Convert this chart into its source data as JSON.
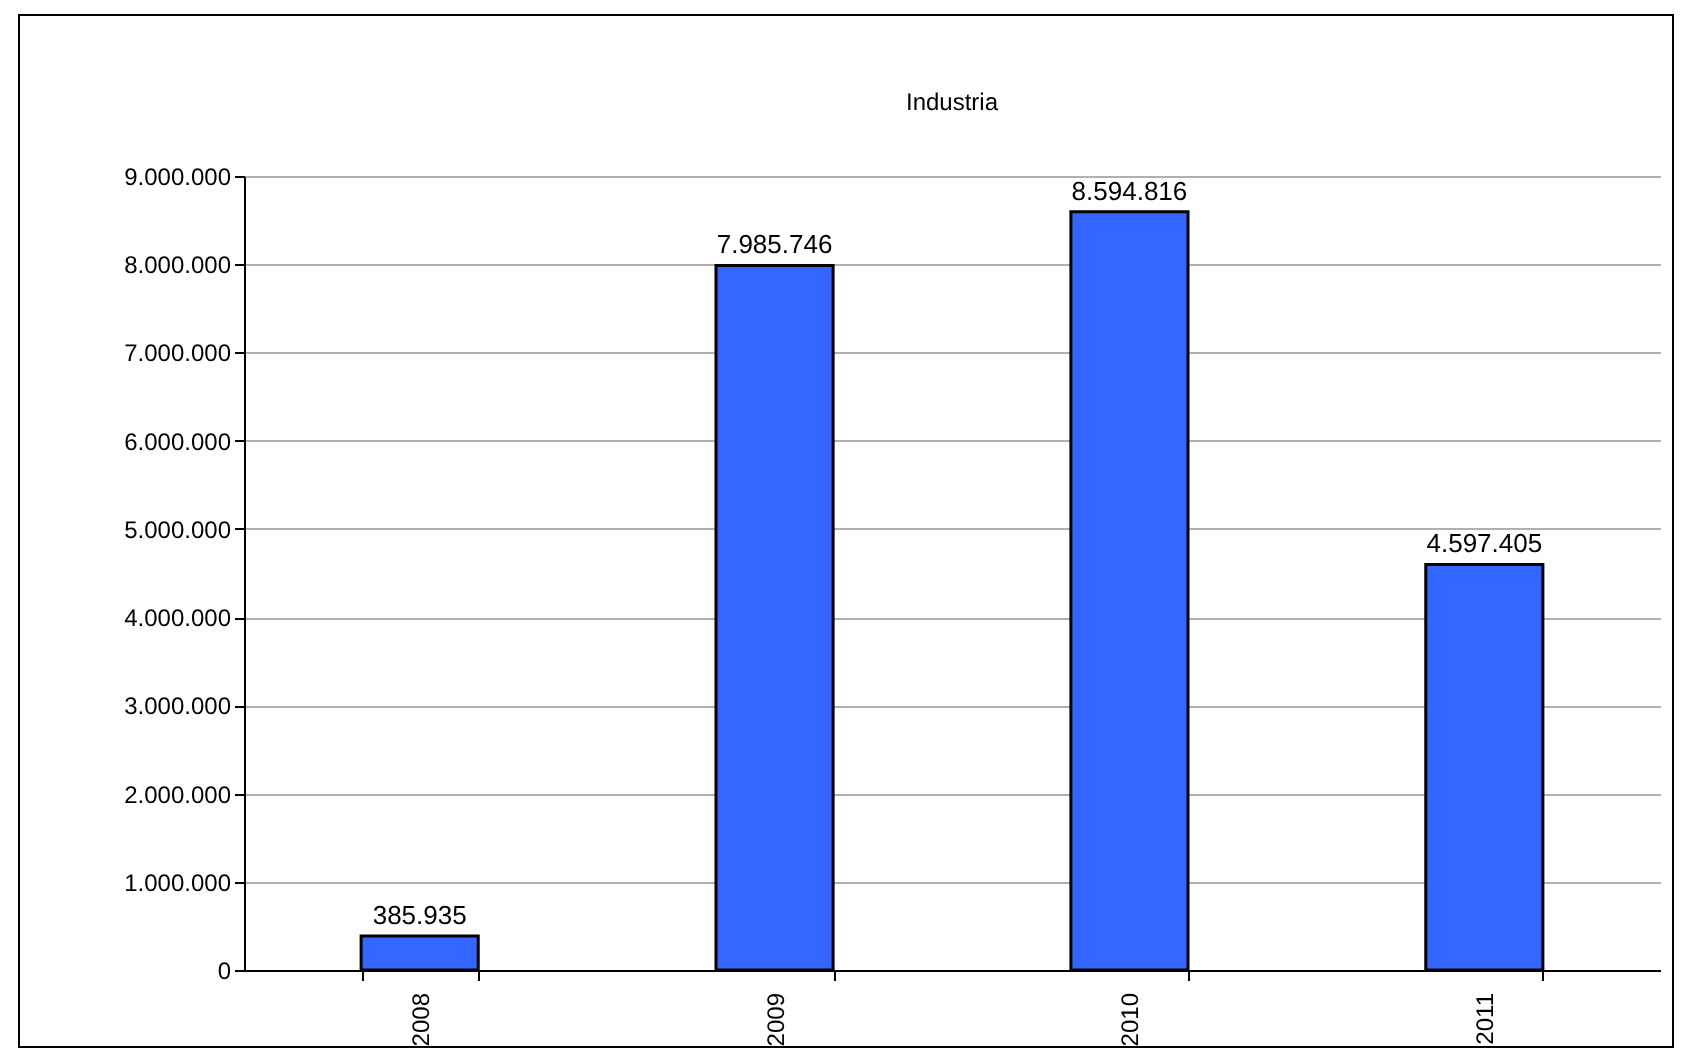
{
  "chart_data": {
    "type": "bar",
    "title": "Industria",
    "categories": [
      "2008",
      "2009",
      "2010",
      "2011"
    ],
    "values": [
      385935,
      7985746,
      8594816,
      4597405
    ],
    "value_labels": [
      "385.935",
      "7.985.746",
      "8.594.816",
      "4.597.405"
    ],
    "color": "#3366ff",
    "ylim": [
      0,
      9000000
    ],
    "yticks": [
      0,
      {
        "value": 1000000,
        "label": "1.000.000"
      },
      {
        "value": 2000000,
        "label": "2.000.000"
      },
      {
        "value": 3000000,
        "label": "3.000.000"
      },
      {
        "value": 4000000,
        "label": "4.000.000"
      },
      {
        "value": 5000000,
        "label": "5.000.000"
      },
      {
        "value": 6000000,
        "label": "6.000.000"
      },
      {
        "value": 7000000,
        "label": "7.000.000"
      },
      {
        "value": 8000000,
        "label": "8.000.000"
      },
      {
        "value": 9000000,
        "label": "9.000.000"
      }
    ],
    "grid": "y"
  }
}
